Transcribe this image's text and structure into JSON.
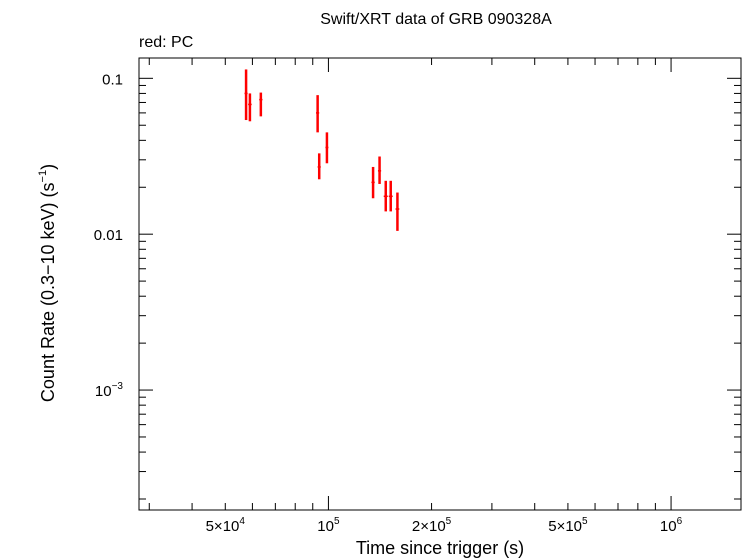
{
  "chart_data": {
    "type": "scatter",
    "title": "Swift/XRT data of GRB 090328A",
    "subtitle": "red: PC",
    "xlabel": "Time since trigger (s)",
    "ylabel_parts": {
      "main": "Count Rate (0.3−10 keV) (s",
      "sup": "−1",
      "end": ")"
    },
    "xscale": "log",
    "yscale": "log",
    "xlim": [
      28000,
      1600000
    ],
    "ylim": [
      0.00017,
      0.135
    ],
    "x_ticks": [
      {
        "value": 50000,
        "base": "5×10",
        "exp": "4"
      },
      {
        "value": 100000,
        "base": "10",
        "exp": "5"
      },
      {
        "value": 200000,
        "base": "2×10",
        "exp": "5"
      },
      {
        "value": 500000,
        "base": "5×10",
        "exp": "5"
      },
      {
        "value": 1000000,
        "base": "10",
        "exp": "6"
      }
    ],
    "y_ticks": [
      {
        "value": 0.1,
        "base": "0.1",
        "exp": ""
      },
      {
        "value": 0.01,
        "base": "0.01",
        "exp": ""
      },
      {
        "value": 0.001,
        "base": "10",
        "exp": "−3"
      }
    ],
    "series": [
      {
        "color": "#ff0000",
        "points": [
          {
            "x": 57500,
            "xerr": [
              600,
              600
            ],
            "y": 0.08,
            "yerr": [
              0.026,
              0.034
            ]
          },
          {
            "x": 59000,
            "xerr": [
              700,
              700
            ],
            "y": 0.068,
            "yerr": [
              0.015,
              0.012
            ]
          },
          {
            "x": 63500,
            "xerr": [
              700,
              700
            ],
            "y": 0.073,
            "yerr": [
              0.016,
              0.008
            ]
          },
          {
            "x": 93000,
            "xerr": [
              1000,
              1000
            ],
            "y": 0.06,
            "yerr": [
              0.015,
              0.018
            ]
          },
          {
            "x": 94000,
            "xerr": [
              1000,
              1000
            ],
            "y": 0.027,
            "yerr": [
              0.0045,
              0.006
            ]
          },
          {
            "x": 99000,
            "xerr": [
              1000,
              1000
            ],
            "y": 0.036,
            "yerr": [
              0.0075,
              0.009
            ]
          },
          {
            "x": 135000,
            "xerr": [
              1500,
              1500
            ],
            "y": 0.0215,
            "yerr": [
              0.0045,
              0.0055
            ]
          },
          {
            "x": 141000,
            "xerr": [
              1500,
              1500
            ],
            "y": 0.0255,
            "yerr": [
              0.0045,
              0.006
            ]
          },
          {
            "x": 147000,
            "xerr": [
              2000,
              2000
            ],
            "y": 0.0175,
            "yerr": [
              0.0035,
              0.0045
            ]
          },
          {
            "x": 152000,
            "xerr": [
              2000,
              2000
            ],
            "y": 0.0175,
            "yerr": [
              0.0035,
              0.0045
            ]
          },
          {
            "x": 159000,
            "xerr": [
              2000,
              2000
            ],
            "y": 0.0145,
            "yerr": [
              0.004,
              0.004
            ]
          }
        ]
      }
    ],
    "grid": false
  }
}
